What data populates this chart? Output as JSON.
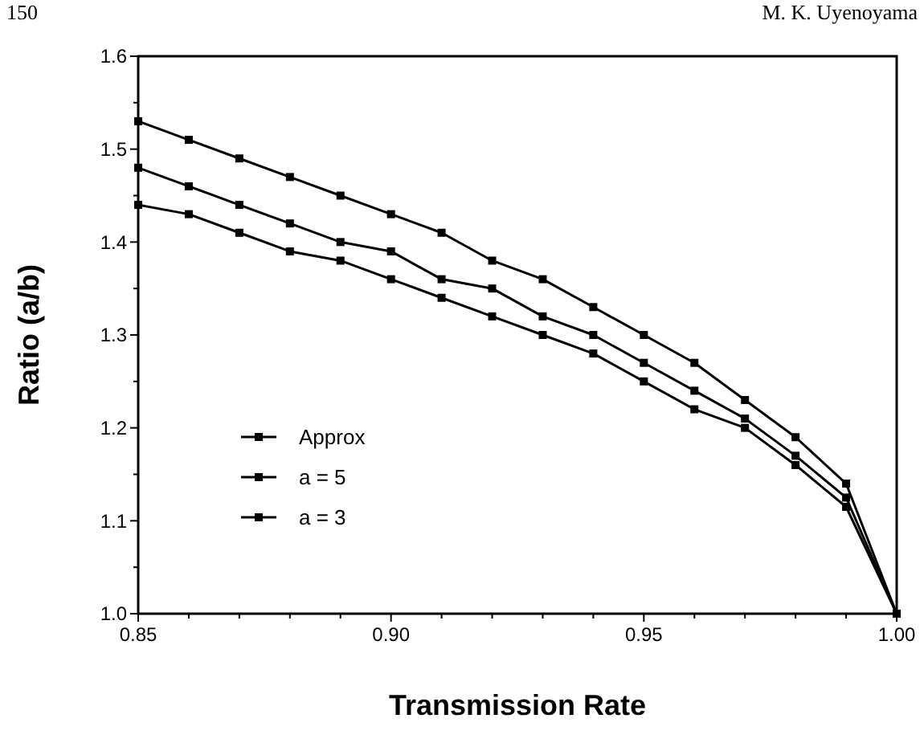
{
  "chart_data": {
    "type": "line",
    "xlabel": "Transmission Rate",
    "ylabel": "Ratio (a/b)",
    "annotations": [
      "150",
      "M. K. Uyenoyama"
    ],
    "x": [
      0.85,
      0.86,
      0.87,
      0.88,
      0.89,
      0.9,
      0.91,
      0.92,
      0.93,
      0.94,
      0.95,
      0.96,
      0.97,
      0.98,
      0.99,
      1.0
    ],
    "series": [
      {
        "name": "Approx",
        "color": "#000000",
        "values": [
          1.53,
          1.51,
          1.49,
          1.47,
          1.45,
          1.43,
          1.41,
          1.38,
          1.36,
          1.33,
          1.3,
          1.27,
          1.23,
          1.19,
          1.14,
          1.0
        ]
      },
      {
        "name": "a = 5",
        "color": "#000000",
        "values": [
          1.48,
          1.46,
          1.44,
          1.42,
          1.4,
          1.39,
          1.36,
          1.35,
          1.32,
          1.3,
          1.27,
          1.24,
          1.21,
          1.17,
          1.125,
          1.0
        ]
      },
      {
        "name": "a = 3",
        "color": "#000000",
        "values": [
          1.44,
          1.43,
          1.41,
          1.39,
          1.38,
          1.36,
          1.34,
          1.32,
          1.3,
          1.28,
          1.25,
          1.22,
          1.2,
          1.16,
          1.115,
          1.0
        ]
      }
    ],
    "xlim": [
      0.85,
      1.0
    ],
    "xticks": [
      0.85,
      {
        "value": 0.86,
        "label": null
      },
      {
        "value": 0.87,
        "label": null
      },
      {
        "value": 0.88,
        "label": null
      },
      {
        "value": 0.89,
        "label": null
      },
      {
        "value": 0.9,
        "label": "0.90"
      },
      {
        "value": 0.91,
        "label": null
      },
      {
        "value": 0.92,
        "label": null
      },
      {
        "value": 0.93,
        "label": null
      },
      {
        "value": 0.94,
        "label": null
      },
      0.95,
      {
        "value": 0.96,
        "label": null
      },
      {
        "value": 0.97,
        "label": null
      },
      {
        "value": 0.98,
        "label": null
      },
      {
        "value": 0.99,
        "label": null
      },
      {
        "value": 1.0,
        "label": "1.00"
      }
    ],
    "ylim": [
      1.0,
      1.6
    ],
    "yticks": [
      {
        "value": 1.0,
        "label": "1.0"
      },
      {
        "value": 1.05,
        "label": null
      },
      1.1,
      {
        "value": 1.15,
        "label": null
      },
      1.2,
      {
        "value": 1.25,
        "label": null
      },
      1.3,
      {
        "value": 1.35,
        "label": null
      },
      1.4,
      {
        "value": 1.45,
        "label": null
      },
      1.5,
      {
        "value": 1.55,
        "label": null
      },
      1.6
    ],
    "grid": false,
    "legend": "left",
    "marker": "square",
    "line_style": "solid"
  }
}
